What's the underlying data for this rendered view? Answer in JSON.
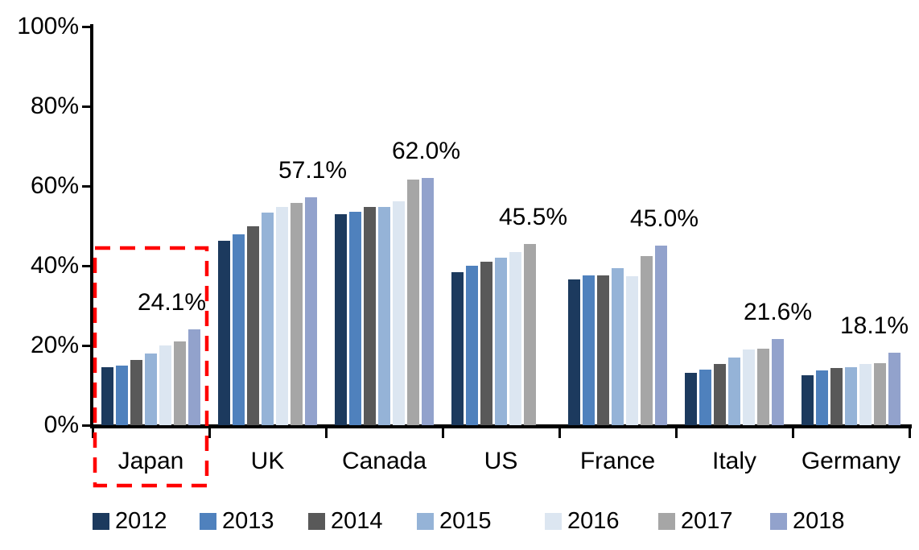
{
  "chart_data": {
    "type": "bar",
    "title": "",
    "xlabel": "",
    "ylabel": "",
    "ylim": [
      0,
      100
    ],
    "grid": false,
    "legend_position": "bottom",
    "yticks": [
      "0%",
      "20%",
      "40%",
      "60%",
      "80%",
      "100%"
    ],
    "categories": [
      "Japan",
      "UK",
      "Canada",
      "US",
      "France",
      "Italy",
      "Germany"
    ],
    "series": [
      {
        "name": "2012",
        "color": "#1C3A5E",
        "values": [
          14.5,
          46.2,
          53.0,
          38.3,
          36.5,
          13.2,
          12.5
        ]
      },
      {
        "name": "2013",
        "color": "#4F81BD",
        "values": [
          14.9,
          47.9,
          53.5,
          39.9,
          37.6,
          13.9,
          13.7
        ]
      },
      {
        "name": "2014",
        "color": "#595959",
        "values": [
          16.3,
          49.9,
          54.8,
          41.0,
          37.6,
          15.4,
          14.4
        ]
      },
      {
        "name": "2015",
        "color": "#95B3D7",
        "values": [
          17.9,
          53.3,
          54.8,
          42.0,
          39.3,
          16.9,
          14.6
        ]
      },
      {
        "name": "2016",
        "color": "#DCE6F1",
        "values": [
          19.9,
          54.7,
          56.2,
          43.5,
          37.4,
          19.0,
          15.4
        ]
      },
      {
        "name": "2017",
        "color": "#A6A6A6",
        "values": [
          21.0,
          55.7,
          61.6,
          45.5,
          42.4,
          19.2,
          15.6
        ]
      },
      {
        "name": "2018",
        "color": "#92A2CC",
        "values": [
          24.1,
          57.1,
          62.0,
          null,
          45.0,
          21.6,
          18.1
        ]
      }
    ],
    "value_labels": [
      {
        "category": "Japan",
        "text": "24.1%",
        "dx": -28
      },
      {
        "category": "UK",
        "text": "57.1%",
        "dx": 2
      },
      {
        "category": "Canada",
        "text": "62.0%",
        "dx": -2
      },
      {
        "category": "US",
        "text": "45.5%",
        "dx": 4
      },
      {
        "category": "France",
        "text": "45.0%",
        "dx": 4
      },
      {
        "category": "Italy",
        "text": "21.6%",
        "dx": 0
      },
      {
        "category": "Germany",
        "text": "18.1%",
        "dx": -25
      }
    ],
    "highlight": {
      "category": "Japan",
      "style": "dashed-box",
      "color": "#FF0000"
    },
    "axis_color": "#000000",
    "text_color": "#000000"
  }
}
